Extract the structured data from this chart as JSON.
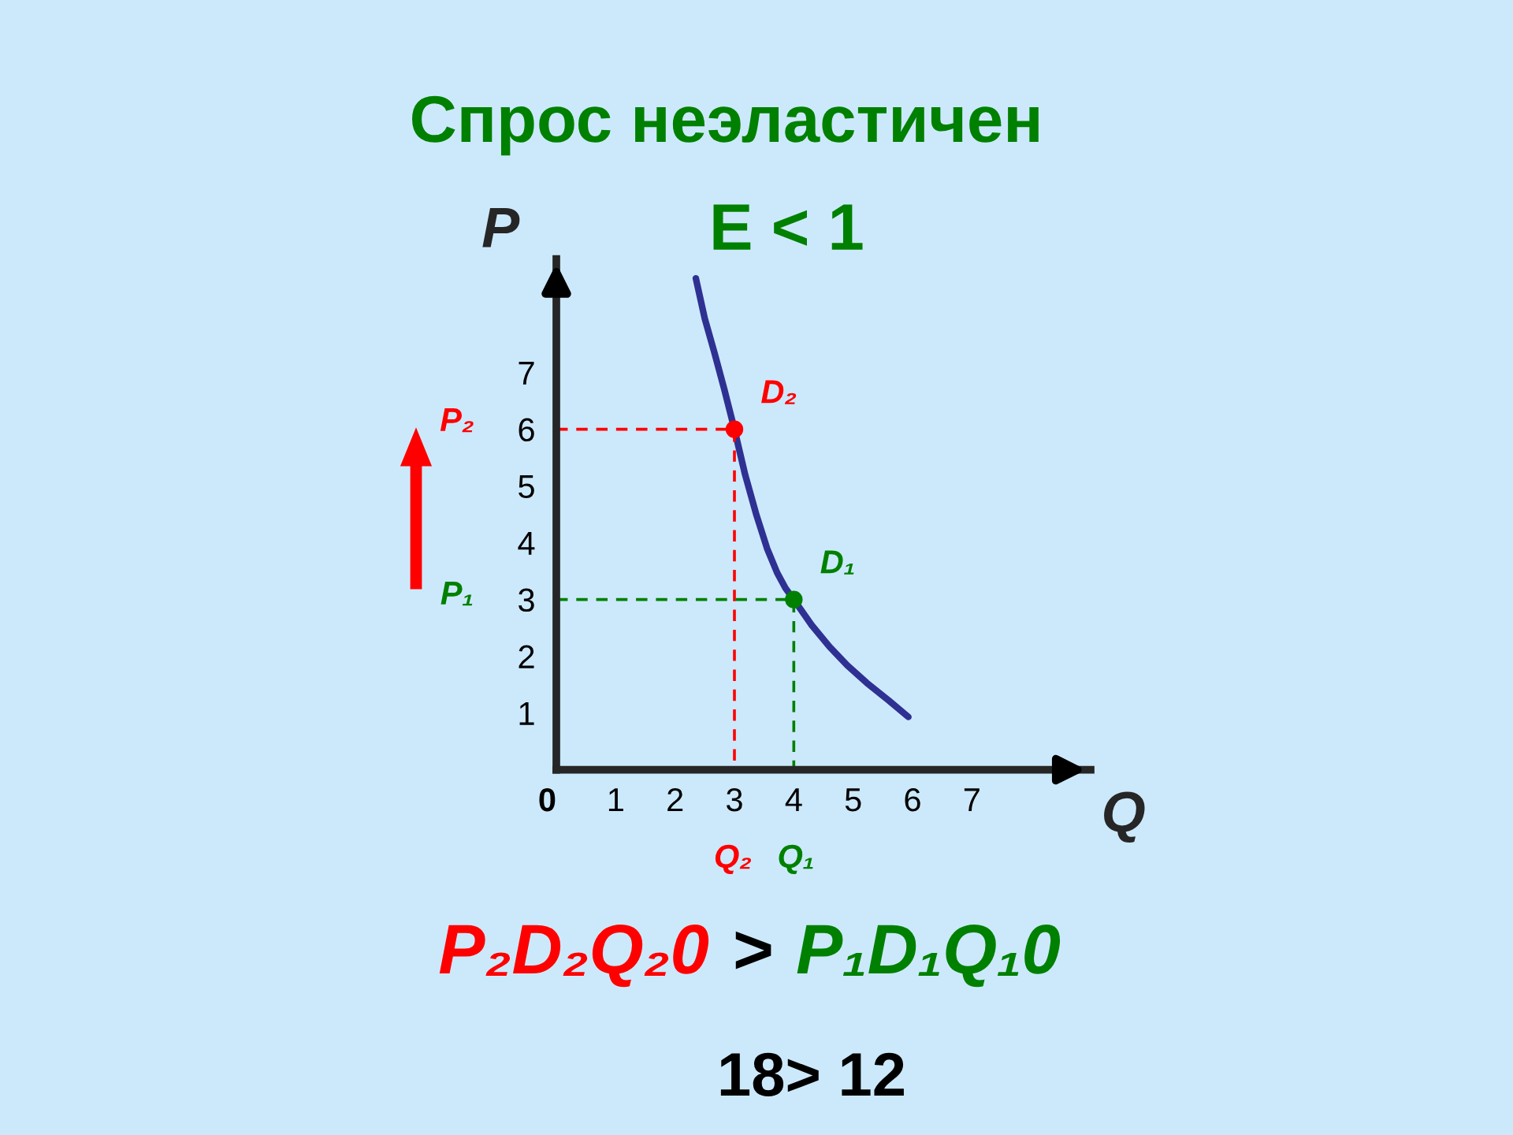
{
  "chart_data": {
    "type": "line",
    "title": "Спрос неэластичен",
    "subtitle": "E < 1",
    "xlabel": "Q",
    "ylabel": "P",
    "xlim": [
      0,
      9
    ],
    "ylim": [
      0,
      9
    ],
    "xticks": [
      {
        "value": 0,
        "label": "0"
      },
      1,
      2,
      3,
      4,
      5,
      6,
      7
    ],
    "yticks": [
      1,
      2,
      3,
      4,
      5,
      6,
      7
    ],
    "grid": false,
    "legend": false,
    "series": [
      {
        "color": "#2e3192",
        "line_style": "solid",
        "x": [
          2.35,
          2.5,
          2.66,
          2.83,
          3,
          3.18,
          3.37,
          3.55,
          3.72,
          3.86,
          4,
          4.3,
          4.6,
          4.9,
          5.23,
          5.6,
          5.93
        ],
        "values": [
          8.66,
          7.95,
          7.36,
          6.7,
          6,
          5.2,
          4.49,
          3.9,
          3.47,
          3.2,
          3,
          2.55,
          2.17,
          1.84,
          1.53,
          1.22,
          0.93
        ]
      },
      {
        "color": "#ff0000",
        "line_style": "dashed",
        "x": [
          0,
          3,
          3
        ],
        "values": [
          6,
          6,
          0
        ]
      },
      {
        "color": "#008000",
        "line_style": "dashed",
        "x": [
          0,
          4,
          4
        ],
        "values": [
          3,
          3,
          0
        ]
      },
      {
        "type": "scatter",
        "name": "D₂",
        "color": "#ff0000",
        "marker": "circle",
        "x": [
          3
        ],
        "values": [
          6
        ]
      },
      {
        "type": "scatter",
        "name": "D₁",
        "color": "#008000",
        "marker": "circle",
        "x": [
          4
        ],
        "values": [
          3
        ]
      }
    ],
    "annotations": [
      "Q₂",
      "Q₁",
      "P₂",
      "P₁",
      "P₂D₂Q₂0",
      ">",
      "P₁D₁Q₁0",
      "18> 12"
    ]
  }
}
